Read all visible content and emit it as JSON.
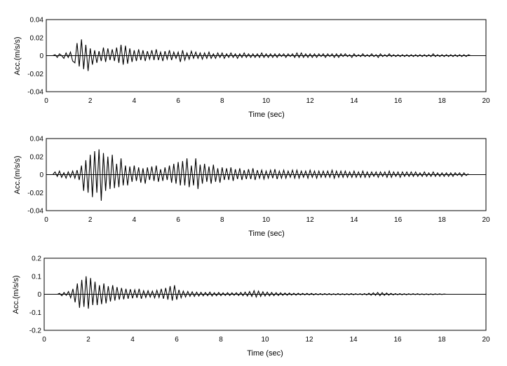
{
  "chart_data": [
    {
      "type": "line",
      "title": "",
      "xlabel": "Time (sec)",
      "ylabel": "Acc.(m/s/s)",
      "xlim": [
        0,
        20
      ],
      "ylim": [
        -0.04,
        0.04
      ],
      "xticks": [
        0,
        2,
        4,
        6,
        8,
        10,
        12,
        14,
        16,
        18,
        20
      ],
      "yticks": [
        -0.04,
        -0.02,
        0,
        0.02,
        0.04
      ],
      "ytick_labels": [
        "-0.04",
        "-0.02",
        "0",
        "0.02",
        "0.04"
      ],
      "grid": false,
      "series_color": "#000000",
      "x_step": 0.1,
      "x_start": 0.3,
      "y": [
        0.0,
        0.001,
        -0.002,
        0.002,
        0.0,
        -0.003,
        0.003,
        -0.002,
        0.004,
        -0.006,
        -0.008,
        0.014,
        -0.012,
        0.018,
        -0.015,
        0.012,
        -0.017,
        0.008,
        -0.01,
        0.006,
        -0.008,
        0.005,
        -0.006,
        0.009,
        -0.007,
        0.008,
        -0.005,
        0.007,
        -0.006,
        0.009,
        -0.008,
        0.012,
        -0.01,
        0.011,
        -0.009,
        0.008,
        -0.007,
        0.006,
        -0.006,
        0.007,
        -0.005,
        0.006,
        -0.006,
        0.005,
        -0.004,
        0.006,
        -0.005,
        0.007,
        -0.005,
        0.004,
        -0.006,
        0.005,
        -0.004,
        0.006,
        -0.005,
        0.004,
        -0.003,
        0.004,
        -0.007,
        0.006,
        -0.005,
        0.003,
        -0.004,
        0.005,
        -0.003,
        0.004,
        -0.003,
        0.003,
        -0.004,
        0.003,
        -0.003,
        0.004,
        -0.003,
        0.002,
        -0.003,
        0.003,
        -0.002,
        0.003,
        -0.003,
        0.002,
        -0.002,
        0.003,
        -0.002,
        0.002,
        -0.003,
        0.002,
        -0.002,
        0.003,
        -0.002,
        0.002,
        -0.002,
        0.002,
        -0.002,
        0.002,
        -0.002,
        0.003,
        -0.002,
        0.002,
        -0.002,
        0.002,
        -0.002,
        0.002,
        -0.002,
        0.002,
        -0.001,
        0.002,
        -0.002,
        0.002,
        -0.001,
        0.002,
        -0.002,
        0.003,
        -0.002,
        0.003,
        -0.002,
        0.002,
        -0.002,
        0.002,
        -0.002,
        0.002,
        -0.002,
        0.002,
        -0.001,
        0.002,
        -0.002,
        0.002,
        -0.001,
        0.002,
        -0.002,
        0.002,
        -0.002,
        0.002,
        -0.001,
        0.002,
        -0.001,
        0.001,
        -0.002,
        0.002,
        -0.001,
        0.001,
        -0.001,
        0.002,
        -0.001,
        0.001,
        -0.001,
        0.002,
        -0.001,
        0.001,
        -0.002,
        0.002,
        -0.001,
        0.001,
        -0.001,
        0.002,
        -0.001,
        0.001,
        -0.001,
        0.001,
        -0.001,
        0.001,
        -0.001,
        0.001,
        -0.001,
        0.001,
        -0.001,
        0.001,
        -0.001,
        0.001,
        -0.001,
        0.001,
        -0.001,
        0.001,
        -0.001,
        0.002,
        -0.001,
        0.001,
        -0.001,
        0.001,
        -0.001,
        0.001,
        -0.001,
        0.001,
        -0.001,
        0.001,
        -0.001,
        0.001,
        -0.001,
        0.001,
        -0.001,
        0.001,
        0.0
      ]
    },
    {
      "type": "line",
      "title": "",
      "xlabel": "Time (sec)",
      "ylabel": "Acc.(m/s/s)",
      "xlim": [
        0,
        20
      ],
      "ylim": [
        -0.04,
        0.04
      ],
      "xticks": [
        0,
        2,
        4,
        6,
        8,
        10,
        12,
        14,
        16,
        18,
        20
      ],
      "yticks": [
        -0.04,
        -0.02,
        0,
        0.02,
        0.04
      ],
      "ytick_labels": [
        "-0.04",
        "-0.02",
        "0",
        "0.02",
        "0.04"
      ],
      "grid": false,
      "series_color": "#000000",
      "x_step": 0.1,
      "x_start": 0.3,
      "y": [
        0.0,
        0.003,
        -0.002,
        0.004,
        -0.003,
        0.002,
        -0.004,
        0.003,
        -0.003,
        0.004,
        -0.004,
        0.005,
        -0.006,
        0.01,
        -0.018,
        0.016,
        -0.02,
        0.022,
        -0.025,
        0.026,
        -0.02,
        0.028,
        -0.029,
        0.024,
        -0.018,
        0.02,
        -0.016,
        0.022,
        -0.015,
        0.012,
        -0.014,
        0.018,
        -0.012,
        0.01,
        -0.012,
        0.009,
        -0.008,
        0.01,
        -0.007,
        0.008,
        -0.009,
        0.007,
        -0.01,
        0.008,
        -0.006,
        0.009,
        -0.007,
        0.01,
        -0.008,
        0.006,
        -0.007,
        0.008,
        -0.006,
        0.01,
        -0.009,
        0.012,
        -0.01,
        0.014,
        -0.012,
        0.015,
        -0.012,
        0.018,
        -0.014,
        0.01,
        -0.012,
        0.018,
        -0.016,
        0.011,
        -0.01,
        0.012,
        -0.008,
        0.009,
        -0.01,
        0.011,
        -0.008,
        0.007,
        -0.009,
        0.008,
        -0.006,
        0.007,
        -0.006,
        0.008,
        -0.007,
        0.006,
        -0.005,
        0.007,
        -0.006,
        0.005,
        -0.005,
        0.006,
        -0.005,
        0.007,
        -0.006,
        0.005,
        -0.004,
        0.005,
        -0.005,
        0.004,
        -0.004,
        0.005,
        -0.004,
        0.006,
        -0.005,
        0.004,
        -0.004,
        0.005,
        -0.004,
        0.004,
        -0.003,
        0.005,
        -0.004,
        0.005,
        -0.004,
        0.004,
        -0.003,
        0.004,
        -0.004,
        0.005,
        -0.003,
        0.004,
        -0.004,
        0.004,
        -0.003,
        0.004,
        -0.003,
        0.004,
        -0.003,
        0.005,
        -0.004,
        0.004,
        -0.003,
        0.004,
        -0.003,
        0.004,
        -0.003,
        0.003,
        -0.003,
        0.004,
        -0.003,
        0.003,
        -0.003,
        0.004,
        -0.003,
        0.003,
        -0.003,
        0.003,
        -0.002,
        0.003,
        -0.003,
        0.003,
        -0.002,
        0.003,
        -0.003,
        0.004,
        -0.003,
        0.003,
        -0.002,
        0.003,
        -0.003,
        0.003,
        -0.002,
        0.003,
        -0.002,
        0.003,
        -0.002,
        0.003,
        -0.002,
        0.002,
        -0.002,
        0.003,
        -0.002,
        0.002,
        -0.002,
        0.003,
        -0.002,
        0.002,
        -0.002,
        0.002,
        -0.002,
        0.002,
        -0.002,
        0.002,
        -0.002,
        0.002,
        -0.001,
        0.002,
        -0.002,
        0.002,
        -0.001,
        0.001
      ]
    },
    {
      "type": "line",
      "title": "",
      "xlabel": "Time (sec)",
      "ylabel": "Acc.(m/s/s)",
      "xlim": [
        0,
        20
      ],
      "ylim": [
        -0.2,
        0.2
      ],
      "xticks": [
        0,
        2,
        4,
        6,
        8,
        10,
        12,
        14,
        16,
        18,
        20
      ],
      "yticks": [
        -0.2,
        -0.1,
        0,
        0.1,
        0.2
      ],
      "ytick_labels": [
        "-0.2",
        "-0.1",
        "0",
        "0.1",
        "0.2"
      ],
      "grid": false,
      "series_color": "#000000",
      "x_step": 0.1,
      "x_start": 0.6,
      "y": [
        0.0,
        0.005,
        -0.008,
        0.01,
        -0.006,
        0.015,
        -0.02,
        0.03,
        -0.045,
        0.06,
        -0.075,
        0.08,
        -0.07,
        0.1,
        -0.08,
        0.09,
        -0.06,
        0.07,
        -0.06,
        0.05,
        -0.055,
        0.06,
        -0.05,
        0.045,
        -0.04,
        0.05,
        -0.035,
        0.04,
        -0.03,
        0.035,
        -0.028,
        0.03,
        -0.025,
        0.028,
        -0.022,
        0.025,
        -0.02,
        0.03,
        -0.025,
        0.02,
        -0.018,
        0.02,
        -0.016,
        0.018,
        -0.02,
        0.022,
        -0.018,
        0.03,
        -0.025,
        0.035,
        -0.03,
        0.045,
        -0.035,
        0.05,
        -0.03,
        0.025,
        -0.02,
        0.018,
        -0.015,
        0.016,
        -0.012,
        0.014,
        -0.012,
        0.012,
        -0.01,
        0.011,
        -0.009,
        0.01,
        -0.008,
        0.012,
        -0.01,
        0.009,
        -0.008,
        0.01,
        -0.008,
        0.008,
        -0.007,
        0.009,
        -0.007,
        0.008,
        -0.006,
        0.009,
        -0.007,
        0.01,
        -0.008,
        0.012,
        -0.01,
        0.015,
        -0.012,
        0.02,
        -0.015,
        0.018,
        -0.012,
        0.014,
        -0.01,
        0.012,
        -0.009,
        0.01,
        -0.008,
        0.009,
        -0.007,
        0.008,
        -0.006,
        0.007,
        -0.006,
        0.007,
        -0.005,
        0.006,
        -0.005,
        0.006,
        -0.004,
        0.005,
        -0.004,
        0.005,
        -0.004,
        0.005,
        -0.004,
        0.004,
        -0.003,
        0.004,
        -0.003,
        0.004,
        -0.003,
        0.004,
        -0.003,
        0.003,
        -0.003,
        0.004,
        -0.003,
        0.003,
        -0.003,
        0.003,
        -0.003,
        0.004,
        -0.003,
        0.003,
        -0.002,
        0.003,
        -0.003,
        0.004,
        -0.004,
        0.006,
        -0.005,
        0.008,
        -0.006,
        0.01,
        -0.008,
        0.009,
        -0.006,
        0.007,
        -0.005,
        0.005,
        -0.004,
        0.004,
        -0.003,
        0.004,
        -0.003,
        0.003,
        -0.003,
        0.003,
        -0.002,
        0.003,
        -0.002,
        0.003,
        -0.002,
        0.002,
        -0.002,
        0.002,
        -0.002,
        0.002,
        -0.002,
        0.002,
        -0.001,
        0.002,
        -0.001,
        0.001,
        0.0
      ]
    }
  ]
}
